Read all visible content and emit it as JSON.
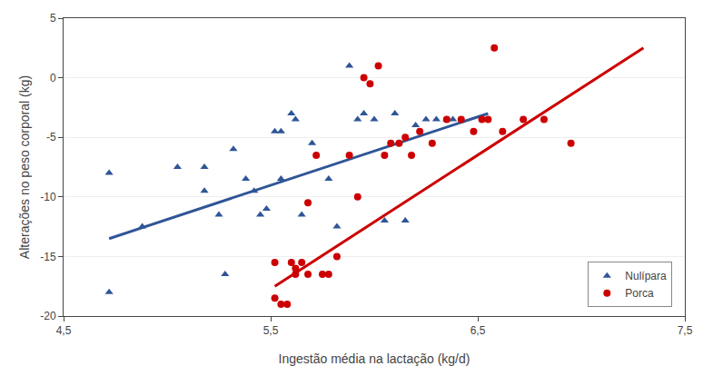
{
  "chart_data": {
    "type": "scatter",
    "xlabel": "Ingestão média na lactação (kg/d)",
    "ylabel": "Alterações no peso corporal (kg)",
    "xlim": [
      4.5,
      7.5
    ],
    "ylim": [
      -20,
      5
    ],
    "xticks": [
      {
        "value": 4.5,
        "label": "4,5"
      },
      {
        "value": 5.5,
        "label": "5,5"
      },
      {
        "value": 6.5,
        "label": "6,5"
      },
      {
        "value": 7.5,
        "label": "7,5"
      }
    ],
    "yticks": [
      -20,
      -15,
      -10,
      -5,
      0,
      5
    ],
    "grid": "y",
    "legend": "lower right",
    "series": [
      {
        "name": "Nulípara",
        "type": "scatter",
        "marker": "triangle-up",
        "color": "#2f5597",
        "x": [
          4.72,
          4.72,
          4.88,
          5.05,
          5.18,
          5.18,
          5.25,
          5.28,
          5.32,
          5.38,
          5.42,
          5.45,
          5.48,
          5.52,
          5.55,
          5.55,
          5.6,
          5.62,
          5.65,
          5.7,
          5.78,
          5.82,
          5.88,
          5.92,
          5.95,
          6.0,
          6.05,
          6.1,
          6.15,
          6.2,
          6.25,
          6.3,
          6.35,
          6.38
        ],
        "values": [
          -18.0,
          -8.0,
          -12.5,
          -7.5,
          -9.5,
          -7.5,
          -11.5,
          -16.5,
          -6.0,
          -8.5,
          -9.5,
          -11.5,
          -11.0,
          -4.5,
          -8.5,
          -4.5,
          -3.0,
          -3.5,
          -11.5,
          -5.5,
          -8.5,
          -12.5,
          1.0,
          -3.5,
          -3.0,
          -3.5,
          -12.0,
          -3.0,
          -12.0,
          -4.0,
          -3.5,
          -3.5,
          -3.5,
          -3.5
        ]
      },
      {
        "name": "Porca",
        "type": "scatter",
        "marker": "circle",
        "color": "#cc0000",
        "x": [
          5.52,
          5.52,
          5.55,
          5.58,
          5.6,
          5.62,
          5.62,
          5.65,
          5.68,
          5.68,
          5.72,
          5.75,
          5.78,
          5.82,
          5.88,
          5.92,
          5.95,
          5.98,
          6.02,
          6.05,
          6.08,
          6.12,
          6.15,
          6.18,
          6.22,
          6.28,
          6.35,
          6.42,
          6.48,
          6.52,
          6.55,
          6.58,
          6.62,
          6.72,
          6.82,
          6.95
        ],
        "values": [
          -18.5,
          -15.5,
          -19.0,
          -19.0,
          -15.5,
          -16.0,
          -16.5,
          -15.5,
          -16.5,
          -10.5,
          -6.5,
          -16.5,
          -16.5,
          -15.0,
          -6.5,
          -10.0,
          0.0,
          -0.5,
          1.0,
          -6.5,
          -5.5,
          -5.5,
          -5.0,
          -6.5,
          -4.5,
          -5.5,
          -3.5,
          -3.5,
          -4.5,
          -3.5,
          -3.5,
          2.5,
          -4.5,
          -3.5,
          -3.5,
          -5.5
        ]
      },
      {
        "type": "line",
        "line_style": "solid",
        "color": "#2f5597",
        "x": [
          4.72,
          6.55
        ],
        "values": [
          -13.5,
          -3.0
        ]
      },
      {
        "type": "line",
        "line_style": "solid",
        "color": "#cc0000",
        "x": [
          5.52,
          7.3
        ],
        "values": [
          -17.5,
          2.5
        ]
      }
    ]
  }
}
